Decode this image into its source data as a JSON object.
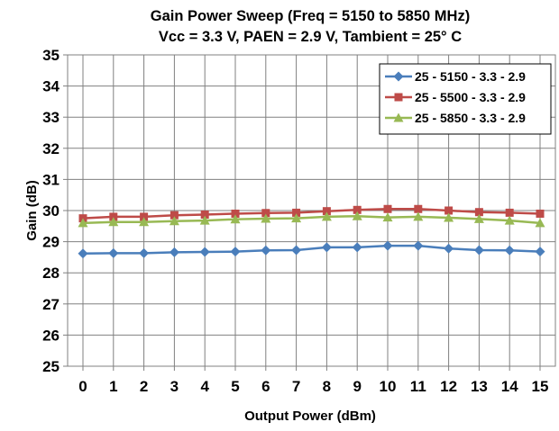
{
  "chart_data": {
    "type": "line",
    "title_lines": [
      "Gain Power Sweep (Freq = 5150 to 5850 MHz)",
      "Vcc = 3.3 V, PAEN = 2.9 V, Tambient = 25° C"
    ],
    "xlabel": "Output Power (dBm)",
    "ylabel": "Gain (dB)",
    "xlim": [
      0,
      15
    ],
    "ylim": [
      25,
      35
    ],
    "x_ticks": [
      "0",
      "1",
      "2",
      "3",
      "4",
      "5",
      "6",
      "7",
      "8",
      "9",
      "10",
      "11",
      "12",
      "13",
      "14",
      "15"
    ],
    "y_ticks": [
      "25",
      "26",
      "27",
      "28",
      "29",
      "30",
      "31",
      "32",
      "33",
      "34",
      "35"
    ],
    "grid": true,
    "legend_position": "top-right",
    "x": [
      0,
      1,
      2,
      3,
      4,
      5,
      6,
      7,
      8,
      9,
      10,
      11,
      12,
      13,
      14,
      15
    ],
    "series": [
      {
        "name": "25 - 5150 - 3.3 - 2.9",
        "color": "#4a7ebb",
        "marker": "diamond",
        "values": [
          28.62,
          28.63,
          28.63,
          28.66,
          28.67,
          28.68,
          28.72,
          28.73,
          28.82,
          28.82,
          28.87,
          28.87,
          28.78,
          28.73,
          28.72,
          28.68
        ]
      },
      {
        "name": "25 - 5500 - 3.3 - 2.9",
        "color": "#be4b48",
        "marker": "square",
        "values": [
          29.75,
          29.8,
          29.8,
          29.85,
          29.87,
          29.9,
          29.92,
          29.93,
          29.98,
          30.02,
          30.05,
          30.05,
          30.0,
          29.95,
          29.93,
          29.9
        ]
      },
      {
        "name": "25 - 5850 - 3.3 - 2.9",
        "color": "#98b954",
        "marker": "triangle",
        "values": [
          29.6,
          29.63,
          29.63,
          29.66,
          29.68,
          29.72,
          29.74,
          29.75,
          29.8,
          29.82,
          29.78,
          29.8,
          29.77,
          29.73,
          29.68,
          29.6
        ]
      }
    ]
  }
}
